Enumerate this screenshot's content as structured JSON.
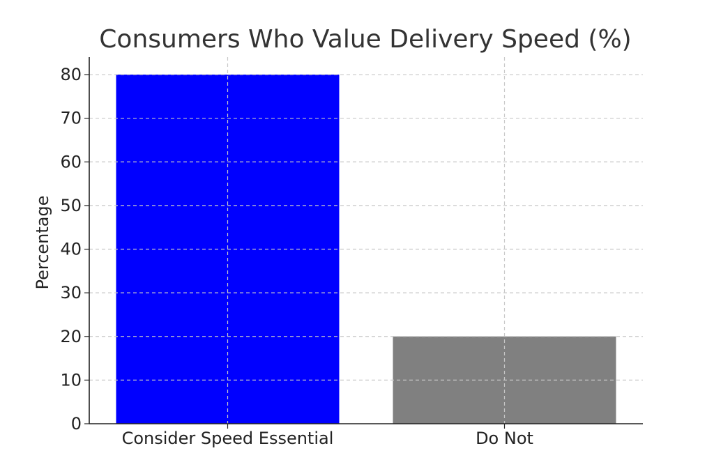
{
  "chart_data": {
    "type": "bar",
    "title": "Consumers Who Value Delivery Speed (%)",
    "xlabel": "",
    "ylabel": "Percentage",
    "categories": [
      "Consider Speed Essential",
      "Do Not"
    ],
    "values": [
      80,
      20
    ],
    "colors": [
      "#0000ff",
      "#808080"
    ],
    "ylim": [
      0,
      84
    ],
    "yticks": [
      0,
      10,
      20,
      30,
      40,
      50,
      60,
      70,
      80
    ],
    "grid": true,
    "legend": "none"
  }
}
